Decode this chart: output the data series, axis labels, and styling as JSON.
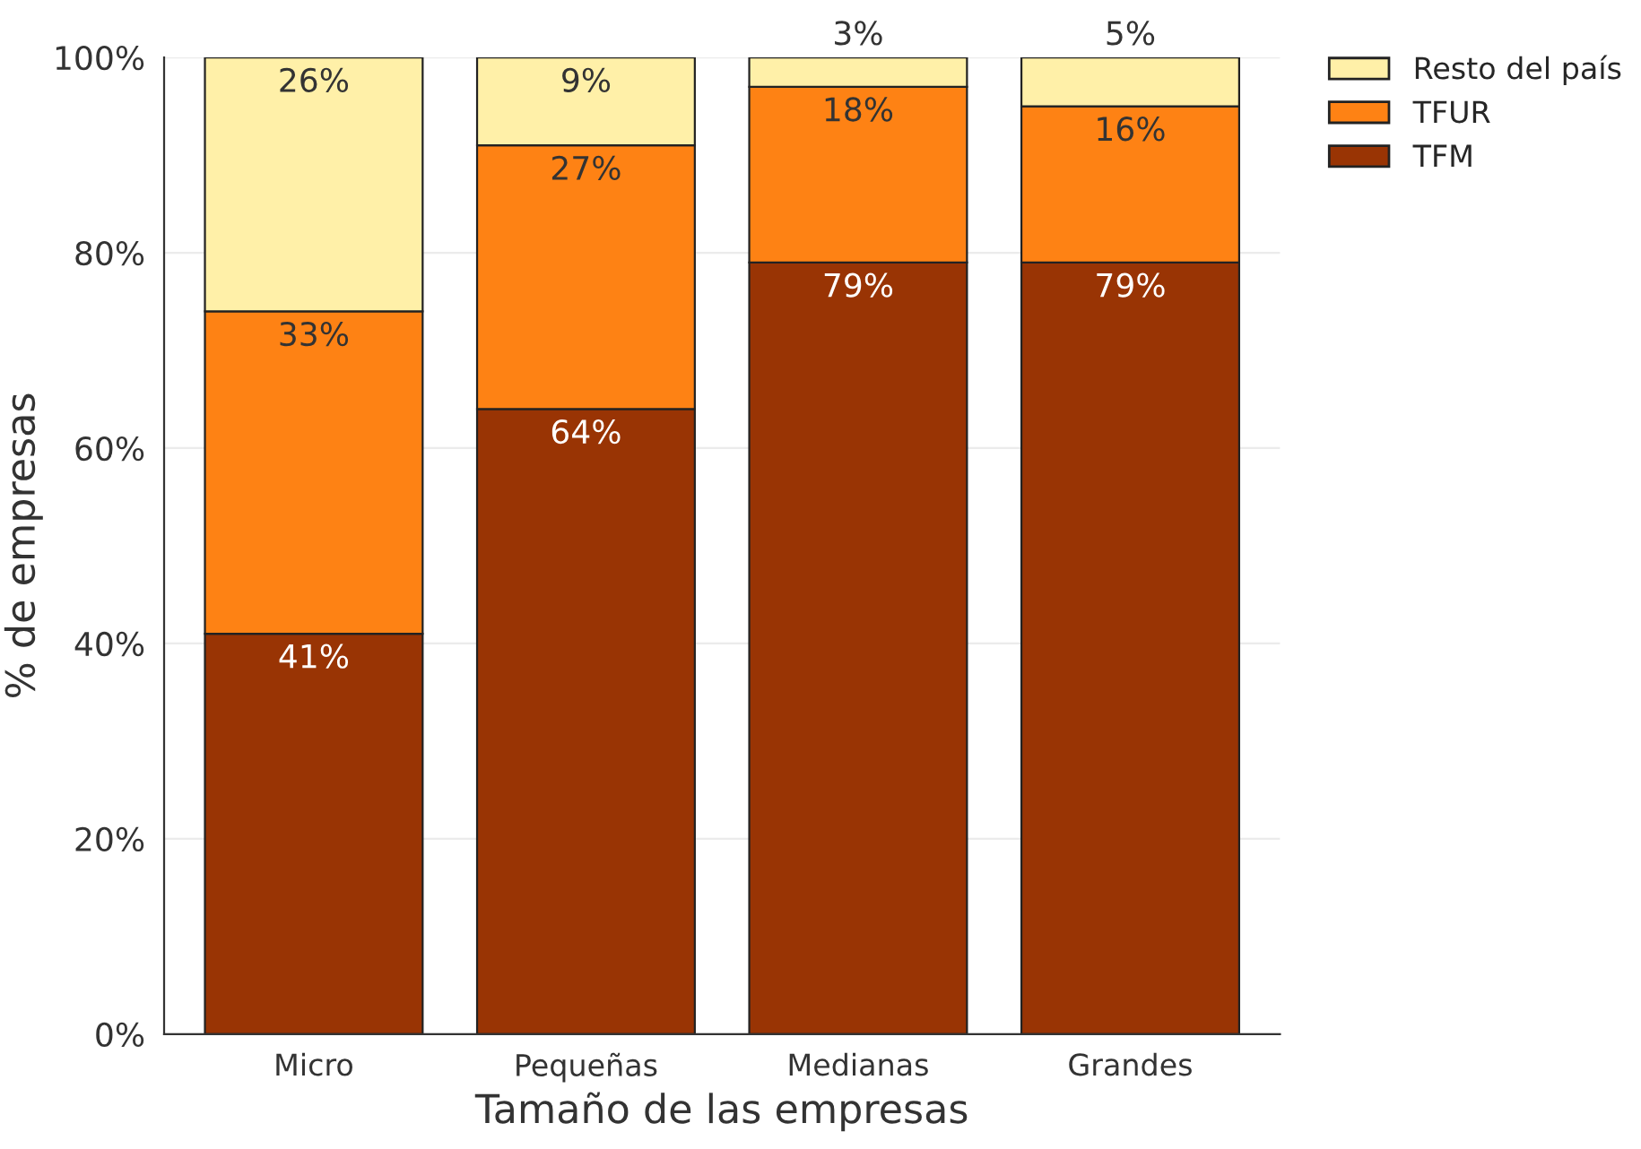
{
  "chart_data": {
    "type": "bar",
    "stacked": true,
    "xlabel": "Tamaño de las empresas",
    "ylabel": "% de empresas",
    "categories": [
      "Micro",
      "Pequeñas",
      "Medianas",
      "Grandes"
    ],
    "series": [
      {
        "name": "TFM",
        "color": "#993404",
        "values": [
          41,
          64,
          79,
          79
        ],
        "value_labels": [
          "41%",
          "64%",
          "79%",
          "79%"
        ]
      },
      {
        "name": "TFUR",
        "color": "#fe8214",
        "values": [
          33,
          27,
          18,
          16
        ],
        "value_labels": [
          "33%",
          "27%",
          "18%",
          "16%"
        ]
      },
      {
        "name": "Resto del país",
        "color": "#fff0a8",
        "values": [
          26,
          9,
          3,
          5
        ],
        "value_labels": [
          "26%",
          "9%",
          "3%",
          "5%"
        ]
      }
    ],
    "ylim": [
      0,
      100
    ],
    "yticks": [
      {
        "value": 0,
        "label": "0%"
      },
      {
        "value": 20,
        "label": "20%"
      },
      {
        "value": 40,
        "label": "40%"
      },
      {
        "value": 60,
        "label": "60%"
      },
      {
        "value": 80,
        "label": "80%"
      },
      {
        "value": 100,
        "label": "100%"
      }
    ],
    "grid": "y",
    "legend": "top right"
  }
}
